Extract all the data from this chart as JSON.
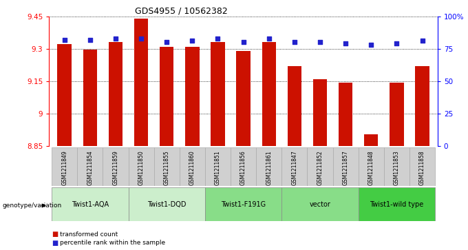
{
  "title": "GDS4955 / 10562382",
  "samples": [
    "GSM1211849",
    "GSM1211854",
    "GSM1211859",
    "GSM1211850",
    "GSM1211855",
    "GSM1211860",
    "GSM1211851",
    "GSM1211856",
    "GSM1211861",
    "GSM1211847",
    "GSM1211852",
    "GSM1211857",
    "GSM1211848",
    "GSM1211853",
    "GSM1211858"
  ],
  "bar_values": [
    9.32,
    9.295,
    9.33,
    9.44,
    9.31,
    9.31,
    9.33,
    9.29,
    9.33,
    9.22,
    9.16,
    9.145,
    8.905,
    9.145,
    9.22
  ],
  "percentile_values": [
    82,
    82,
    83,
    83,
    80,
    81,
    83,
    80,
    83,
    80,
    80,
    79,
    78,
    79,
    81
  ],
  "ymin": 8.85,
  "ymax": 9.45,
  "yticks": [
    8.85,
    9.0,
    9.15,
    9.3,
    9.45
  ],
  "ytick_labels": [
    "8.85",
    "9",
    "9.15",
    "9.3",
    "9.45"
  ],
  "right_yticks": [
    0,
    25,
    50,
    75,
    100
  ],
  "right_ytick_labels": [
    "0",
    "25",
    "50",
    "75",
    "100%"
  ],
  "bar_color": "#cc1100",
  "dot_color": "#2222cc",
  "groups": [
    {
      "label": "Twist1-AQA",
      "start": 0,
      "end": 3,
      "color": "#cceecc"
    },
    {
      "label": "Twist1-DQD",
      "start": 3,
      "end": 6,
      "color": "#cceecc"
    },
    {
      "label": "Twist1-F191G",
      "start": 6,
      "end": 9,
      "color": "#88dd88"
    },
    {
      "label": "vector",
      "start": 9,
      "end": 12,
      "color": "#88dd88"
    },
    {
      "label": "Twist1-wild type",
      "start": 12,
      "end": 15,
      "color": "#44cc44"
    }
  ],
  "legend_red_label": "transformed count",
  "legend_blue_label": "percentile rank within the sample",
  "genotype_label": "genotype/variation",
  "sample_box_color": "#d0d0d0",
  "sample_box_edge": "#aaaaaa"
}
